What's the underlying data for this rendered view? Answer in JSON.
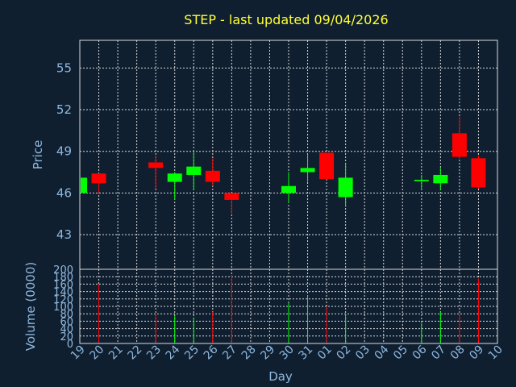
{
  "chart_data": {
    "type": "candlestick",
    "title": "STEP - last updated 09/04/2026",
    "price_panel": {
      "ylabel": "Price",
      "ylim": [
        40.5,
        57
      ],
      "yticks": [
        43,
        46,
        49,
        52,
        55
      ],
      "grid": true
    },
    "volume_panel": {
      "ylabel": "Volume (0000)",
      "ylim": [
        0,
        200
      ],
      "yticks": [
        0,
        20,
        40,
        60,
        80,
        100,
        120,
        140,
        160,
        180,
        200
      ],
      "grid": true
    },
    "xlabel": "Day",
    "x_ticks": [
      "19",
      "20",
      "21",
      "22",
      "23",
      "24",
      "25",
      "26",
      "27",
      "28",
      "29",
      "30",
      "31",
      "01",
      "02",
      "03",
      "04",
      "05",
      "06",
      "07",
      "08",
      "09",
      "10"
    ],
    "colors": {
      "up": "#00ff00",
      "down": "#ff0000"
    },
    "candles": [
      {
        "day": "19",
        "open": 46.0,
        "high": 47.2,
        "low": 46.0,
        "close": 47.1,
        "volume": 0
      },
      {
        "day": "20",
        "open": 47.4,
        "high": 47.4,
        "low": 46.0,
        "close": 46.7,
        "volume": 160
      },
      {
        "day": "23",
        "open": 48.2,
        "high": 48.6,
        "low": 46.3,
        "close": 47.8,
        "volume": 80
      },
      {
        "day": "24",
        "open": 46.8,
        "high": 47.5,
        "low": 45.5,
        "close": 47.4,
        "volume": 75
      },
      {
        "day": "25",
        "open": 47.3,
        "high": 49.0,
        "low": 46.2,
        "close": 47.9,
        "volume": 70
      },
      {
        "day": "26",
        "open": 47.6,
        "high": 48.5,
        "low": 46.5,
        "close": 46.8,
        "volume": 85
      },
      {
        "day": "27",
        "open": 46.0,
        "high": 46.0,
        "low": 44.5,
        "close": 45.5,
        "volume": 185
      },
      {
        "day": "30",
        "open": 46.0,
        "high": 47.5,
        "low": 45.3,
        "close": 46.5,
        "volume": 110
      },
      {
        "day": "31",
        "open": 47.5,
        "high": 48.8,
        "low": 46.8,
        "close": 47.8,
        "volume": 130
      },
      {
        "day": "01",
        "open": 48.9,
        "high": 48.9,
        "low": 47.0,
        "close": 47.0,
        "volume": 100
      },
      {
        "day": "02",
        "open": 45.7,
        "high": 48.1,
        "low": 45.0,
        "close": 47.1,
        "volume": 80
      },
      {
        "day": "06",
        "open": 46.85,
        "high": 47.3,
        "low": 46.2,
        "close": 46.95,
        "volume": 55
      },
      {
        "day": "07",
        "open": 46.7,
        "high": 47.8,
        "low": 46.2,
        "close": 47.3,
        "volume": 85
      },
      {
        "day": "08",
        "open": 50.3,
        "high": 51.5,
        "low": 48.5,
        "close": 48.6,
        "volume": 80
      },
      {
        "day": "09",
        "open": 48.5,
        "high": 48.7,
        "low": 46.3,
        "close": 46.4,
        "volume": 175
      }
    ]
  }
}
